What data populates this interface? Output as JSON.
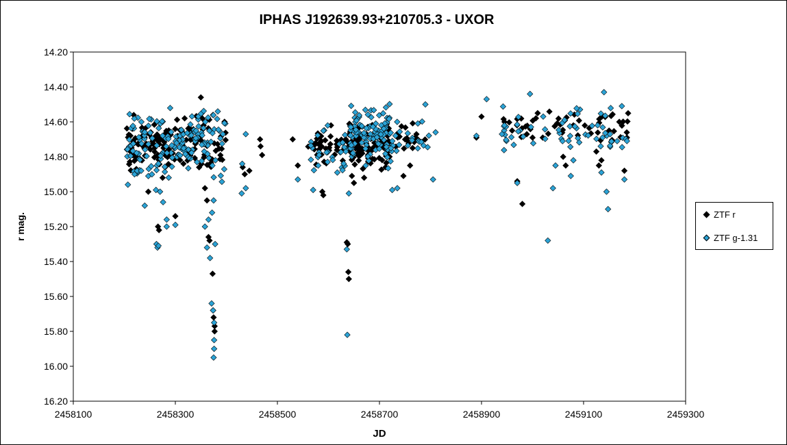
{
  "chart_data": {
    "type": "scatter",
    "title": "IPHAS J192639.93+210705.3  - UXOR",
    "xlabel": "JD",
    "ylabel": "r mag.",
    "xlim": [
      2458100,
      2459300
    ],
    "ylim": [
      14.2,
      16.2
    ],
    "y_inverted": true,
    "grid": false,
    "legend_position": "right",
    "x_ticks": [
      "2458100",
      "2458300",
      "2458500",
      "2458700",
      "2458900",
      "2459100",
      "2459300"
    ],
    "y_ticks": [
      "14.20",
      "14.40",
      "14.60",
      "14.80",
      "15.00",
      "15.20",
      "15.40",
      "15.60",
      "15.80",
      "16.00",
      "16.20"
    ],
    "series": [
      {
        "name": "ZTF r",
        "color": "#000000",
        "points": [
          [
            2458247,
            15.0
          ],
          [
            2458266,
            15.2
          ],
          [
            2458268,
            15.22
          ],
          [
            2458275,
            14.92
          ],
          [
            2458280,
            14.86
          ],
          [
            2458300,
            15.14
          ],
          [
            2458350,
            14.46
          ],
          [
            2458352,
            14.55
          ],
          [
            2458358,
            14.98
          ],
          [
            2458362,
            15.05
          ],
          [
            2458365,
            15.26
          ],
          [
            2458367,
            15.28
          ],
          [
            2458373,
            15.47
          ],
          [
            2458374,
            15.68
          ],
          [
            2458375,
            15.72
          ],
          [
            2458377,
            15.77
          ],
          [
            2458377,
            15.8
          ],
          [
            2458432,
            14.86
          ],
          [
            2458436,
            14.9
          ],
          [
            2458445,
            14.88
          ],
          [
            2458466,
            14.7
          ],
          [
            2458467,
            14.74
          ],
          [
            2458470,
            14.79
          ],
          [
            2458530,
            14.7
          ],
          [
            2458540,
            14.85
          ],
          [
            2458588,
            15.0
          ],
          [
            2458590,
            15.02
          ],
          [
            2458605,
            14.62
          ],
          [
            2458636,
            15.29
          ],
          [
            2458638,
            15.3
          ],
          [
            2458639,
            15.46
          ],
          [
            2458640,
            15.5
          ],
          [
            2458646,
            14.91
          ],
          [
            2458650,
            14.95
          ],
          [
            2458670,
            14.92
          ],
          [
            2458690,
            14.72
          ],
          [
            2458705,
            14.7
          ],
          [
            2458747,
            14.91
          ],
          [
            2458760,
            14.85
          ],
          [
            2458765,
            14.75
          ],
          [
            2458775,
            14.7
          ],
          [
            2458890,
            14.69
          ],
          [
            2458900,
            14.57
          ],
          [
            2458945,
            14.6
          ],
          [
            2458960,
            14.65
          ],
          [
            2458970,
            14.94
          ],
          [
            2458980,
            15.07
          ],
          [
            2459000,
            14.69
          ],
          [
            2459010,
            14.55
          ],
          [
            2459020,
            14.69
          ],
          [
            2459060,
            14.8
          ],
          [
            2459065,
            14.85
          ],
          [
            2459080,
            14.62
          ],
          [
            2459125,
            14.77
          ],
          [
            2459130,
            14.85
          ],
          [
            2459135,
            14.82
          ],
          [
            2459150,
            14.65
          ],
          [
            2459170,
            14.6
          ],
          [
            2459180,
            14.88
          ],
          [
            2459185,
            14.69
          ]
        ],
        "clusters": [
          {
            "x": [
              2458205,
              2458400
            ],
            "y": [
              14.55,
              14.9
            ],
            "n": 150,
            "seed": 11
          },
          {
            "x": [
              2458560,
              2458640
            ],
            "y": [
              14.62,
              14.85
            ],
            "n": 40,
            "seed": 12
          },
          {
            "x": [
              2458640,
              2458720
            ],
            "y": [
              14.58,
              14.88
            ],
            "n": 90,
            "seed": 13
          },
          {
            "x": [
              2458720,
              2458800
            ],
            "y": [
              14.58,
              14.8
            ],
            "n": 18,
            "seed": 14
          },
          {
            "x": [
              2458940,
              2459190
            ],
            "y": [
              14.52,
              14.72
            ],
            "n": 45,
            "seed": 15
          }
        ]
      },
      {
        "name": "ZTF g-1.31",
        "color": "#2ba3d6",
        "points": [
          [
            2458207,
            14.96
          ],
          [
            2458220,
            14.9
          ],
          [
            2458225,
            14.88
          ],
          [
            2458233,
            14.88
          ],
          [
            2458240,
            15.08
          ],
          [
            2458262,
            14.99
          ],
          [
            2458263,
            15.3
          ],
          [
            2458265,
            15.32
          ],
          [
            2458267,
            15.31
          ],
          [
            2458270,
            15.0
          ],
          [
            2458276,
            15.06
          ],
          [
            2458283,
            15.16
          ],
          [
            2458283,
            15.2
          ],
          [
            2458300,
            15.19
          ],
          [
            2458358,
            15.2
          ],
          [
            2458362,
            15.32
          ],
          [
            2458365,
            15.16
          ],
          [
            2458368,
            15.38
          ],
          [
            2458372,
            15.12
          ],
          [
            2458375,
            15.05
          ],
          [
            2458378,
            15.3
          ],
          [
            2458371,
            15.64
          ],
          [
            2458374,
            15.68
          ],
          [
            2458376,
            15.75
          ],
          [
            2458376,
            15.85
          ],
          [
            2458376,
            15.9
          ],
          [
            2458375,
            15.95
          ],
          [
            2458430,
            15.01
          ],
          [
            2458431,
            14.84
          ],
          [
            2458438,
            14.98
          ],
          [
            2458438,
            14.67
          ],
          [
            2458540,
            14.93
          ],
          [
            2458570,
            14.99
          ],
          [
            2458580,
            14.85
          ],
          [
            2458640,
            15.01
          ],
          [
            2458637,
            15.82
          ],
          [
            2458636,
            15.33
          ],
          [
            2458725,
            14.99
          ],
          [
            2458735,
            14.98
          ],
          [
            2458790,
            14.5
          ],
          [
            2458810,
            14.66
          ],
          [
            2458805,
            14.93
          ],
          [
            2458890,
            14.68
          ],
          [
            2458910,
            14.47
          ],
          [
            2458940,
            14.67
          ],
          [
            2458945,
            14.62
          ],
          [
            2458970,
            14.95
          ],
          [
            2458995,
            14.44
          ],
          [
            2459030,
            15.28
          ],
          [
            2459040,
            14.98
          ],
          [
            2459045,
            14.85
          ],
          [
            2459080,
            14.82
          ],
          [
            2459075,
            14.91
          ],
          [
            2459140,
            14.43
          ],
          [
            2459145,
            15.0
          ],
          [
            2459148,
            15.1
          ],
          [
            2459135,
            14.89
          ],
          [
            2459180,
            14.93
          ],
          [
            2459175,
            14.51
          ],
          [
            2459185,
            14.71
          ]
        ],
        "clusters": [
          {
            "x": [
              2458205,
              2458400
            ],
            "y": [
              14.5,
              14.95
            ],
            "n": 160,
            "seed": 21
          },
          {
            "x": [
              2458560,
              2458640
            ],
            "y": [
              14.6,
              14.95
            ],
            "n": 30,
            "seed": 22
          },
          {
            "x": [
              2458640,
              2458720
            ],
            "y": [
              14.48,
              14.88
            ],
            "n": 100,
            "seed": 23
          },
          {
            "x": [
              2458720,
              2458800
            ],
            "y": [
              14.55,
              14.85
            ],
            "n": 25,
            "seed": 24
          },
          {
            "x": [
              2458940,
              2459190
            ],
            "y": [
              14.5,
              14.8
            ],
            "n": 60,
            "seed": 25
          }
        ]
      }
    ]
  }
}
